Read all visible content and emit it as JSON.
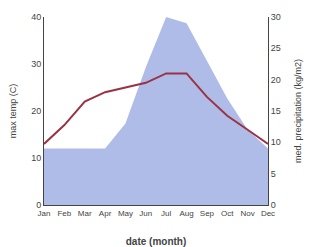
{
  "chart_data": {
    "type": "line",
    "categories": [
      "Jan",
      "Feb",
      "Mar",
      "Apr",
      "May",
      "Jun",
      "Jul",
      "Aug",
      "Sep",
      "Oct",
      "Nov",
      "Dec"
    ],
    "series": [
      {
        "type": "area",
        "axis": "y2",
        "color": "#b0bce8",
        "values": [
          9,
          9,
          9,
          9,
          13,
          22,
          30,
          29,
          23,
          17,
          12,
          9
        ]
      },
      {
        "type": "line",
        "axis": "y",
        "color": "#993344",
        "values": [
          13,
          17,
          22,
          24,
          25,
          26,
          28,
          28,
          23,
          19,
          16,
          13
        ]
      }
    ],
    "xlabel": "date (month)",
    "ylabel": "max temp (C)",
    "y2label": "med. precipitation (kg/m2)",
    "ylim": [
      0,
      40
    ],
    "yticks": [
      0,
      10,
      20,
      30,
      40
    ],
    "y2lim": [
      0,
      30
    ],
    "y2ticks": [
      0,
      5,
      10,
      15,
      20,
      25,
      30
    ],
    "grid": false
  }
}
